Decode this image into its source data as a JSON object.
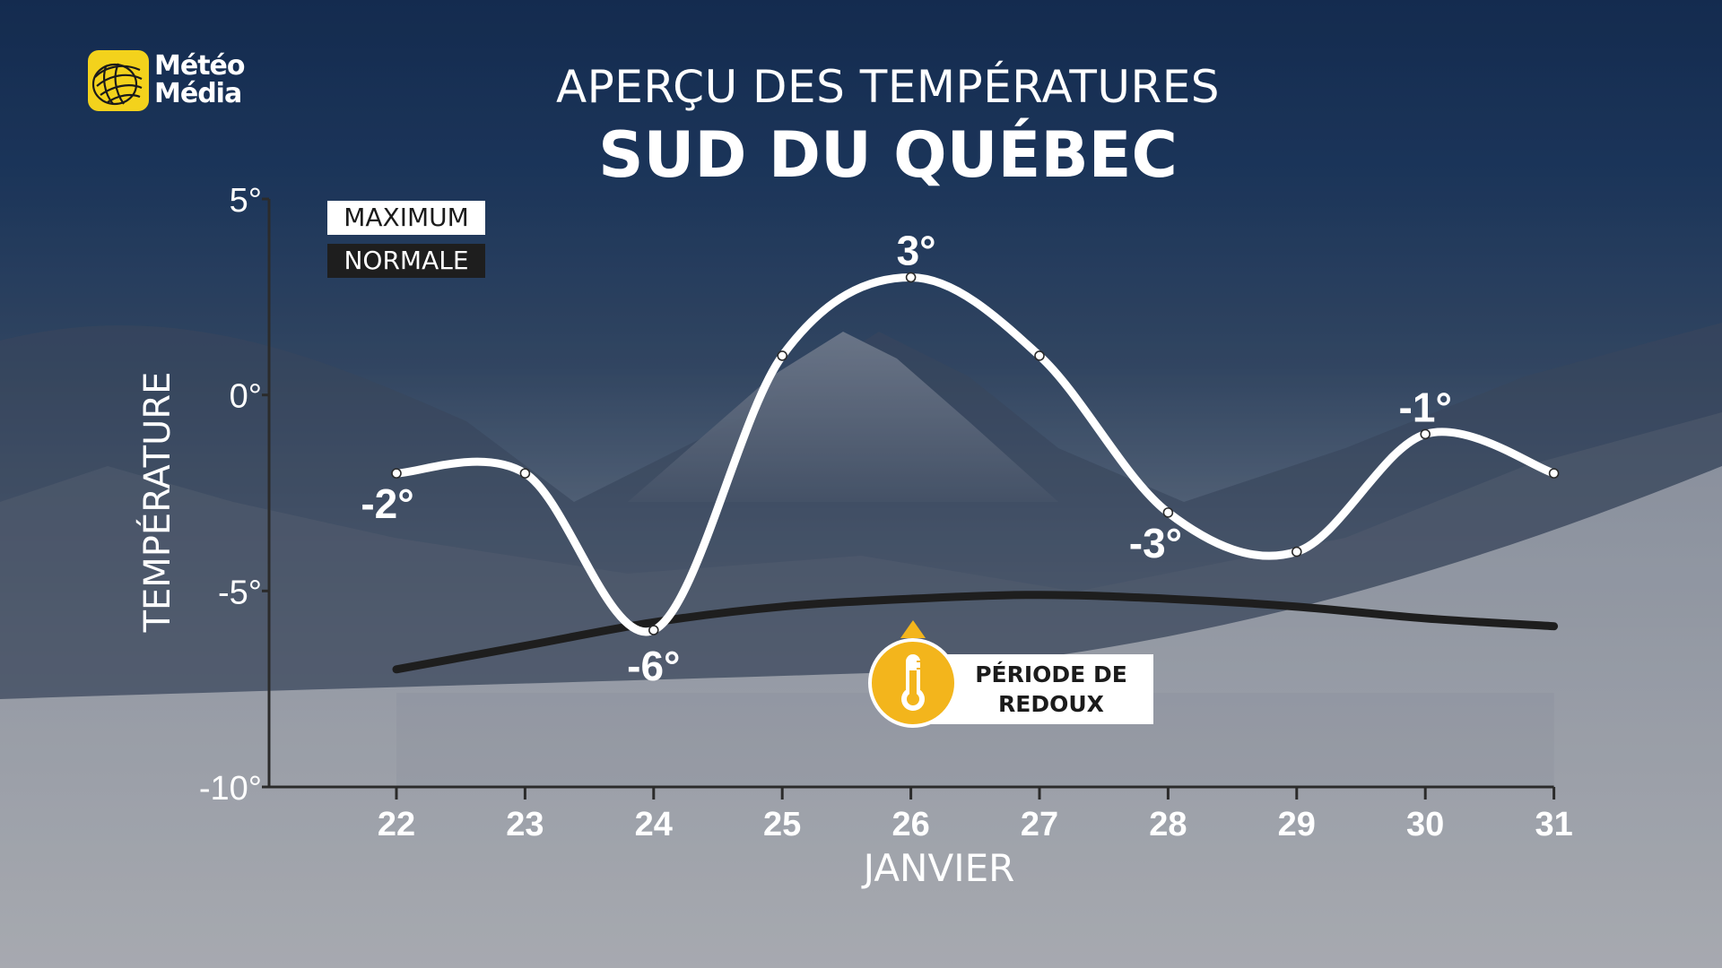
{
  "logo": {
    "line1": "Météo",
    "line2": "Média"
  },
  "title": "APERÇU DES TEMPÉRATURES",
  "subtitle": "SUD DU QUÉBEC",
  "colors": {
    "maximum": "#ffffff",
    "normale": "#1e1e1e",
    "accent": "#f3b51c",
    "logo": "#f3d21c"
  },
  "legend": {
    "maximum": "MAXIMUM",
    "normale": "NORMALE"
  },
  "badge": {
    "icon": "thermometer-icon",
    "line1": "PÉRIODE DE",
    "line2": "REDOUX"
  },
  "chart_data": {
    "type": "line",
    "title": "APERÇU DES TEMPÉRATURES",
    "subtitle": "SUD DU QUÉBEC",
    "xlabel": "JANVIER",
    "ylabel": "TEMPÉRATURE",
    "x": [
      22,
      23,
      24,
      25,
      26,
      27,
      28,
      29,
      30,
      31
    ],
    "ylim": [
      -10,
      5
    ],
    "yticks": [
      5,
      0,
      -5,
      -10
    ],
    "ytick_labels": [
      "5°",
      "0°",
      "-5°",
      "-10°"
    ],
    "grid": false,
    "legend_position": "top-left",
    "series": [
      {
        "name": "MAXIMUM",
        "values": [
          -2,
          -2,
          -6,
          1,
          3,
          1,
          -3,
          -4,
          -1,
          -2
        ]
      },
      {
        "name": "NORMALE",
        "values": [
          -7,
          -6.4,
          -5.8,
          -5.4,
          -5.2,
          -5.1,
          -5.2,
          -5.4,
          -5.7,
          -5.9
        ]
      }
    ],
    "data_labels": [
      {
        "x": 22,
        "text": "-2°"
      },
      {
        "x": 24,
        "text": "-6°"
      },
      {
        "x": 26,
        "text": "3°"
      },
      {
        "x": 28,
        "text": "-3°"
      },
      {
        "x": 30,
        "text": "-1°"
      }
    ]
  }
}
